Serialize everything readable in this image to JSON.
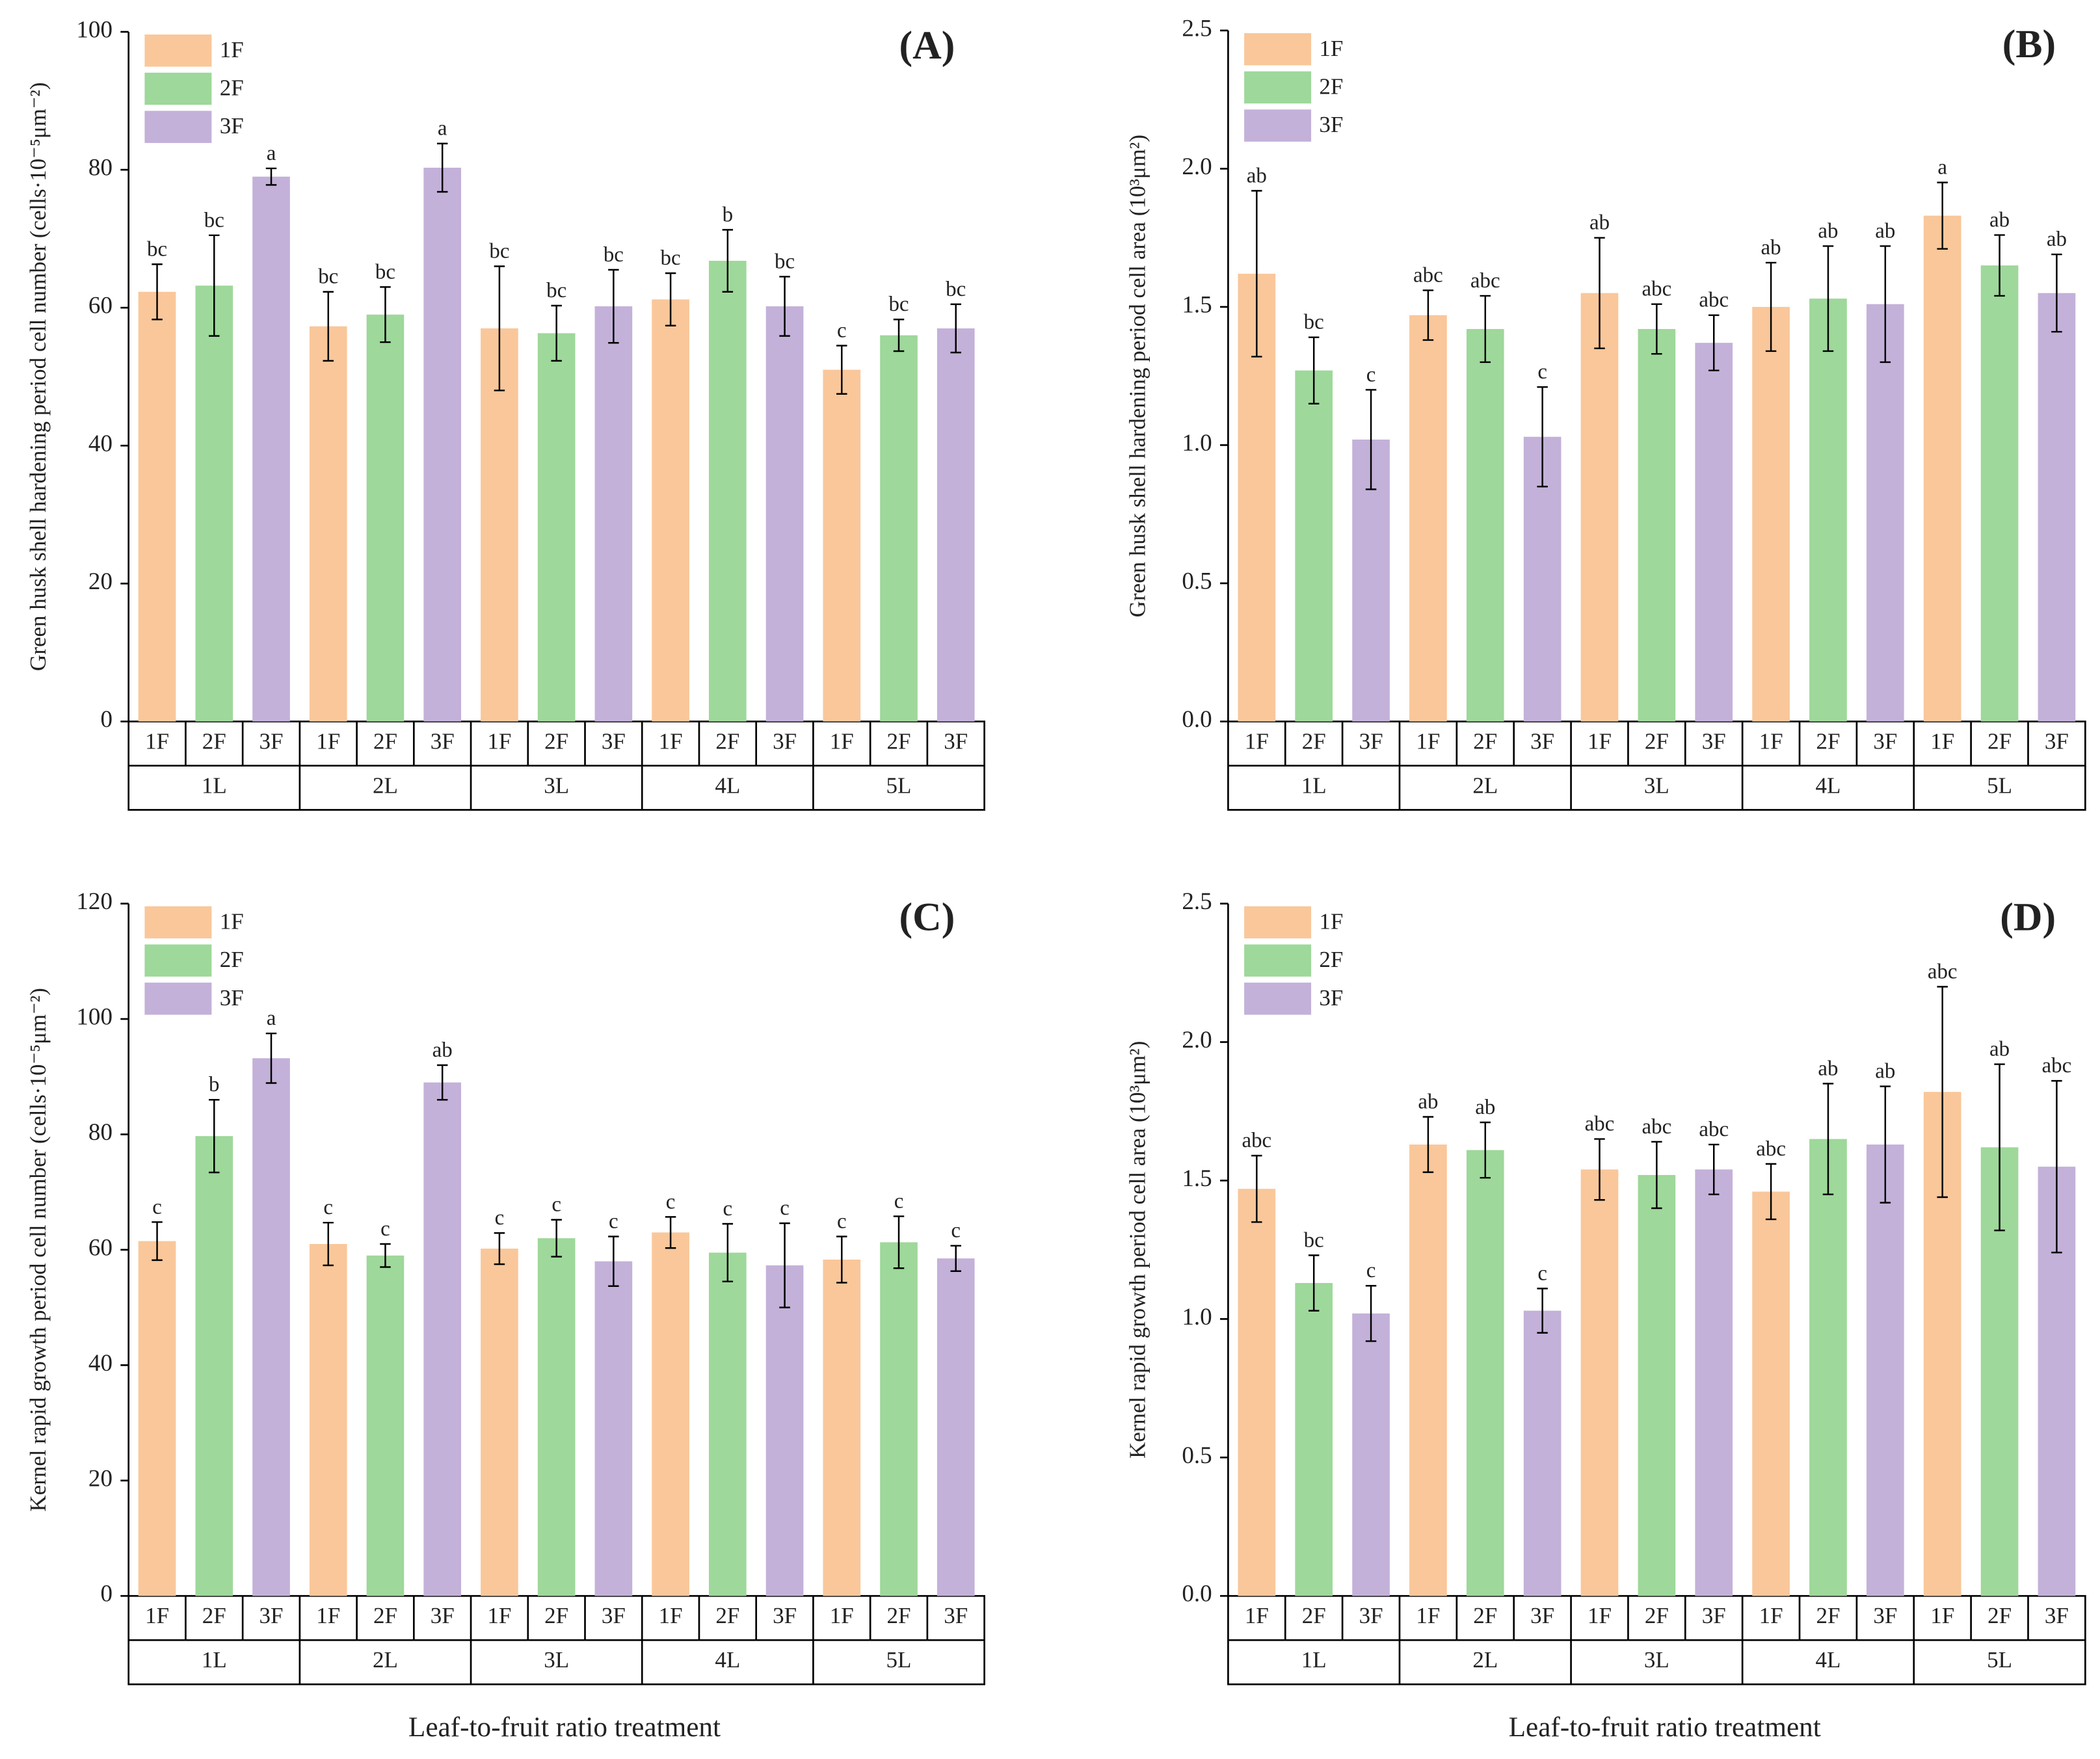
{
  "chart_data": [
    {
      "type": "bar",
      "panel": "(A)",
      "y_label": "Green husk shell hardening period cell number (cells·10⁻⁵μm⁻²)",
      "categories": [
        "1L",
        "2L",
        "3L",
        "4L",
        "5L"
      ],
      "ylim": [
        0,
        100
      ],
      "yticks": [
        0,
        20,
        40,
        60,
        80,
        100
      ],
      "series": [
        {
          "name": "1F",
          "color": "#f9c79a",
          "values": [
            62.3,
            57.3,
            57,
            61.2,
            51
          ],
          "errors": [
            4,
            5,
            9,
            3.8,
            3.5
          ],
          "letters": [
            "bc",
            "bc",
            "bc",
            "bc",
            "c"
          ]
        },
        {
          "name": "2F",
          "color": "#9ed89a",
          "values": [
            63.2,
            59,
            56.3,
            66.8,
            56
          ],
          "errors": [
            7.3,
            4,
            4,
            4.5,
            2.3
          ],
          "letters": [
            "bc",
            "bc",
            "bc",
            "b",
            "bc"
          ]
        },
        {
          "name": "3F",
          "color": "#c3b1d9",
          "values": [
            79,
            80.3,
            60.2,
            60.2,
            57
          ],
          "errors": [
            1.2,
            3.5,
            5.3,
            4.3,
            3.5
          ],
          "letters": [
            "a",
            "a",
            "bc",
            "bc",
            "bc"
          ]
        }
      ]
    },
    {
      "type": "bar",
      "panel": "(B)",
      "y_label": "Green husk shell hardening period cell  area (10³μm²)",
      "categories": [
        "1L",
        "2L",
        "3L",
        "4L",
        "5L"
      ],
      "ylim": [
        0,
        2.5
      ],
      "yticks": [
        {
          "value": 0,
          "label": "0.0"
        },
        0.5,
        {
          "value": 1,
          "label": "1.0"
        },
        1.5,
        {
          "value": 2,
          "label": "2.0"
        },
        2.5
      ],
      "series": [
        {
          "name": "1F",
          "color": "#f9c79a",
          "values": [
            1.62,
            1.47,
            1.55,
            1.5,
            1.83
          ],
          "errors": [
            0.3,
            0.09,
            0.2,
            0.16,
            0.12
          ],
          "letters": [
            "ab",
            "abc",
            "ab",
            "ab",
            "a"
          ]
        },
        {
          "name": "2F",
          "color": "#9ed89a",
          "values": [
            1.27,
            1.42,
            1.42,
            1.53,
            1.65
          ],
          "errors": [
            0.12,
            0.12,
            0.09,
            0.19,
            0.11
          ],
          "letters": [
            "bc",
            "abc",
            "abc",
            "ab",
            "ab"
          ]
        },
        {
          "name": "3F",
          "color": "#c3b1d9",
          "values": [
            1.02,
            1.03,
            1.37,
            1.51,
            1.55
          ],
          "errors": [
            0.18,
            0.18,
            0.1,
            0.21,
            0.14
          ],
          "letters": [
            "c",
            "c",
            "abc",
            "ab",
            "ab"
          ]
        }
      ]
    },
    {
      "type": "bar",
      "panel": "(C)",
      "y_label": "Kernel rapid growth period cell number (cells·10⁻⁵μm⁻²)",
      "x_label": "Leaf-to-fruit ratio treatment",
      "categories": [
        "1L",
        "2L",
        "3L",
        "4L",
        "5L"
      ],
      "ylim": [
        0,
        120
      ],
      "yticks": [
        0,
        20,
        40,
        60,
        80,
        100,
        120
      ],
      "series": [
        {
          "name": "1F",
          "color": "#f9c79a",
          "values": [
            61.5,
            61,
            60.2,
            63,
            58.3
          ],
          "errors": [
            3.3,
            3.7,
            2.7,
            2.7,
            4
          ],
          "letters": [
            "c",
            "c",
            "c",
            "c",
            "c"
          ]
        },
        {
          "name": "2F",
          "color": "#9ed89a",
          "values": [
            79.7,
            59,
            62,
            59.5,
            61.3
          ],
          "errors": [
            6.3,
            2,
            3.2,
            5,
            4.5
          ],
          "letters": [
            "b",
            "c",
            "c",
            "c",
            "c"
          ]
        },
        {
          "name": "3F",
          "color": "#c3b1d9",
          "values": [
            93.2,
            89,
            58,
            57.3,
            58.5
          ],
          "errors": [
            4.3,
            3,
            4.3,
            7.3,
            2.2
          ],
          "letters": [
            "a",
            "ab",
            "c",
            "c",
            "c"
          ]
        }
      ]
    },
    {
      "type": "bar",
      "panel": "(D)",
      "y_label": "Kernel rapid growth period cell area (10³μm²)",
      "x_label": "Leaf-to-fruit ratio treatment",
      "categories": [
        "1L",
        "2L",
        "3L",
        "4L",
        "5L"
      ],
      "ylim": [
        0,
        2.5
      ],
      "yticks": [
        {
          "value": 0,
          "label": "0.0"
        },
        0.5,
        {
          "value": 1,
          "label": "1.0"
        },
        1.5,
        {
          "value": 2,
          "label": "2.0"
        },
        2.5
      ],
      "series": [
        {
          "name": "1F",
          "color": "#f9c79a",
          "values": [
            1.47,
            1.63,
            1.54,
            1.46,
            1.82
          ],
          "errors": [
            0.12,
            0.1,
            0.11,
            0.1,
            0.38
          ],
          "letters": [
            "abc",
            "ab",
            "abc",
            "abc",
            "abc"
          ]
        },
        {
          "name": "2F",
          "color": "#9ed89a",
          "values": [
            1.13,
            1.61,
            1.52,
            1.65,
            1.62
          ],
          "errors": [
            0.1,
            0.1,
            0.12,
            0.2,
            0.3
          ],
          "letters": [
            "bc",
            "ab",
            "abc",
            "ab",
            "ab"
          ]
        },
        {
          "name": "3F",
          "color": "#c3b1d9",
          "values": [
            1.02,
            1.03,
            1.54,
            1.63,
            1.55
          ],
          "errors": [
            0.1,
            0.08,
            0.09,
            0.21,
            0.31
          ],
          "letters": [
            "c",
            "c",
            "abc",
            "ab",
            "abc"
          ]
        }
      ]
    }
  ]
}
